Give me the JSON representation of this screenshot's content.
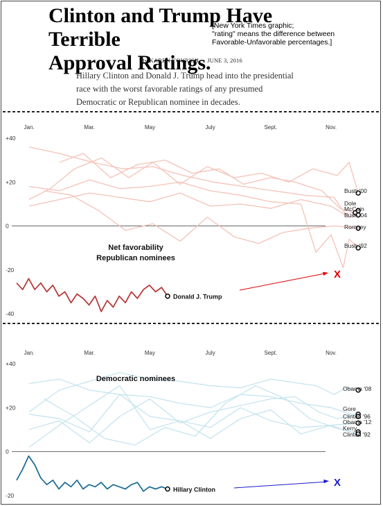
{
  "header": {
    "title_line1": "Clinton and Trump Have Terrible",
    "title_line2": "Approval Ratings.",
    "note_line1": "[New York Times graphic;",
    "note_line2": "\"rating\" means the difference between",
    "note_line3": "Favorable-Unfavorable percentages.]",
    "author": "By KAREN YOURISH",
    "date": "JUNE 3, 2016",
    "intro": "Hillary Clinton and Donald J. Trump head into the presidential race with the worst favorable ratings of any presumed Democratic or Republican nominee in decades."
  },
  "colors": {
    "rep_history": "#f4c2b8",
    "rep_current": "#b83a3a",
    "dem_history": "#c6e4ef",
    "dem_current": "#1f6d96",
    "rep_arrow": "#e00000",
    "dem_arrow": "#1a1acc"
  },
  "chart_data": [
    {
      "type": "line",
      "title": "Net favorability Republican nominees",
      "title_line1": "Net favorability",
      "title_line2": "Republican nominees",
      "x_ticks": [
        "Jan.",
        "Mar.",
        "May",
        "July",
        "Sept.",
        "Nov."
      ],
      "y_ticks": [
        "+40",
        "+20",
        "0",
        "-20",
        "-40"
      ],
      "ylim": [
        -40,
        40
      ],
      "marker_text": "X",
      "series": [
        {
          "name": "Bush '00",
          "x": [
            0,
            0.7,
            1.5,
            2.4,
            3.3,
            4.1,
            5.0,
            5.9,
            6.8,
            7.7,
            8.6,
            9.4,
            10.2,
            10.6,
            10.9
          ],
          "values": [
            12,
            17,
            26,
            31,
            22,
            29,
            19,
            27,
            22,
            24,
            20,
            26,
            23,
            29,
            15
          ]
        },
        {
          "name": "Dole",
          "x": [
            1.0,
            1.8,
            2.7,
            3.6,
            4.5,
            5.4,
            6.3,
            7.1,
            8.0,
            8.8,
            9.7,
            10.3,
            10.8
          ],
          "values": [
            29,
            33,
            22,
            28,
            30,
            24,
            26,
            19,
            22,
            20,
            16,
            8,
            6
          ]
        },
        {
          "name": "McCain",
          "x": [
            0,
            1.0,
            2.1,
            3.1,
            4.1,
            5.1,
            6.1,
            7.1,
            8.1,
            9.1,
            10.1,
            10.5,
            10.9
          ],
          "values": [
            36,
            33,
            29,
            26,
            27,
            23,
            20,
            18,
            16,
            14,
            13,
            5,
            7
          ]
        },
        {
          "name": "Bush '04",
          "x": [
            0,
            1.0,
            2.0,
            3.0,
            4.0,
            5.0,
            6.0,
            7.0,
            8.0,
            9.0,
            10.0,
            10.6,
            10.9
          ],
          "values": [
            9,
            12,
            15,
            13,
            11,
            15,
            9,
            10,
            8,
            12,
            9,
            4,
            5
          ]
        },
        {
          "name": "Romney",
          "x": [
            0.5,
            1.4,
            2.3,
            3.2,
            4.1,
            5.0,
            5.9,
            6.8,
            7.6,
            8.4,
            9.3,
            10.1,
            10.9
          ],
          "values": [
            16,
            14,
            7,
            -2,
            1,
            -7,
            4,
            -5,
            -8,
            -3,
            -1,
            0,
            -1
          ]
        },
        {
          "name": "Bush '92",
          "x": [
            0,
            1.0,
            2.0,
            3.0,
            4.0,
            5.0,
            6.0,
            7.0,
            8.0,
            9.0,
            9.5,
            10.0,
            10.4,
            10.6,
            10.9
          ],
          "values": [
            18,
            16,
            21,
            17,
            18,
            20,
            16,
            14,
            11,
            10,
            -12,
            -4,
            -19,
            -6,
            -10
          ]
        }
      ],
      "current": {
        "name": "Donald J. Trump",
        "x": [
          0,
          0.2,
          0.4,
          0.6,
          0.8,
          1.0,
          1.2,
          1.4,
          1.6,
          1.8,
          2.0,
          2.2,
          2.4,
          2.6,
          2.8,
          3.0,
          3.2,
          3.4,
          3.6,
          3.8,
          4.0,
          4.2,
          4.4,
          4.6,
          4.8,
          5.0
        ],
        "values": [
          -26,
          -29,
          -24,
          -29,
          -26,
          -30,
          -27,
          -32,
          -30,
          -35,
          -31,
          -33,
          -36,
          -32,
          -39,
          -34,
          -37,
          -32,
          -35,
          -30,
          -33,
          -29,
          -27,
          -30,
          -28,
          -32
        ]
      }
    },
    {
      "type": "line",
      "title": "Democratic nominees",
      "x_ticks": [
        "Jan.",
        "Mar.",
        "May",
        "July",
        "Sept.",
        "Nov."
      ],
      "y_ticks": [
        "+40",
        "+20",
        "0",
        "-20"
      ],
      "ylim": [
        -20,
        40
      ],
      "marker_text": "X",
      "series": [
        {
          "name": "Obama '08",
          "x": [
            0,
            1.0,
            2.0,
            3.0,
            4.0,
            5.0,
            6.0,
            7.0,
            8.0,
            9.0,
            9.5,
            10.1,
            10.5,
            10.9
          ],
          "values": [
            18,
            28,
            32,
            36,
            33,
            32,
            30,
            29,
            33,
            31,
            30,
            26,
            29,
            28
          ]
        },
        {
          "name": "Gore",
          "x": [
            0,
            1.0,
            2.0,
            3.0,
            4.0,
            5.0,
            6.0,
            7.0,
            8.0,
            8.8,
            9.6,
            10.2,
            10.9
          ],
          "values": [
            10,
            14,
            4,
            16,
            24,
            13,
            18,
            21,
            24,
            25,
            18,
            15,
            17
          ]
        },
        {
          "name": "Clinton '96",
          "x": [
            0,
            1.0,
            2.0,
            3.0,
            4.0,
            5.0,
            6.0,
            7.0,
            8.0,
            9.0,
            10.0,
            10.9
          ],
          "values": [
            31,
            33,
            28,
            26,
            25,
            22,
            20,
            26,
            25,
            22,
            20,
            16
          ]
        },
        {
          "name": "Obama '12",
          "x": [
            0,
            1.0,
            2.0,
            3.0,
            4.0,
            5.0,
            6.0,
            7.0,
            8.0,
            9.0,
            10.0,
            10.9
          ],
          "values": [
            17,
            15,
            9,
            26,
            16,
            14,
            11,
            20,
            14,
            11,
            12,
            13
          ]
        },
        {
          "name": "Kerry",
          "x": [
            0,
            1.0,
            2.0,
            3.0,
            4.0,
            5.0,
            6.0,
            7.0,
            8.0,
            9.0,
            10.0,
            10.6,
            10.9
          ],
          "values": [
            2,
            12,
            21,
            30,
            10,
            14,
            6,
            15,
            19,
            8,
            12,
            9,
            9
          ]
        },
        {
          "name": "Clinton '92",
          "x": [
            0.5,
            1.5,
            2.5,
            3.5,
            4.5,
            5.5,
            6.5,
            7.5,
            8.5,
            9.3,
            10.1,
            10.9
          ],
          "values": [
            24,
            16,
            6,
            3,
            11,
            7,
            22,
            30,
            24,
            15,
            11,
            8
          ]
        }
      ],
      "current": {
        "name": "Hillary Clinton",
        "x": [
          0,
          0.2,
          0.4,
          0.6,
          0.8,
          1.0,
          1.2,
          1.4,
          1.6,
          1.8,
          2.0,
          2.2,
          2.4,
          2.6,
          2.8,
          3.0,
          3.2,
          3.4,
          3.6,
          3.8,
          4.0,
          4.2,
          4.4,
          4.6,
          4.8,
          5.0
        ],
        "values": [
          -13,
          -8,
          -2,
          -6,
          -12,
          -15,
          -13,
          -17,
          -14,
          -16,
          -13,
          -17,
          -15,
          -16,
          -14,
          -17,
          -15,
          -16,
          -17,
          -15,
          -14,
          -18,
          -16,
          -17,
          -16,
          -17
        ]
      }
    }
  ]
}
